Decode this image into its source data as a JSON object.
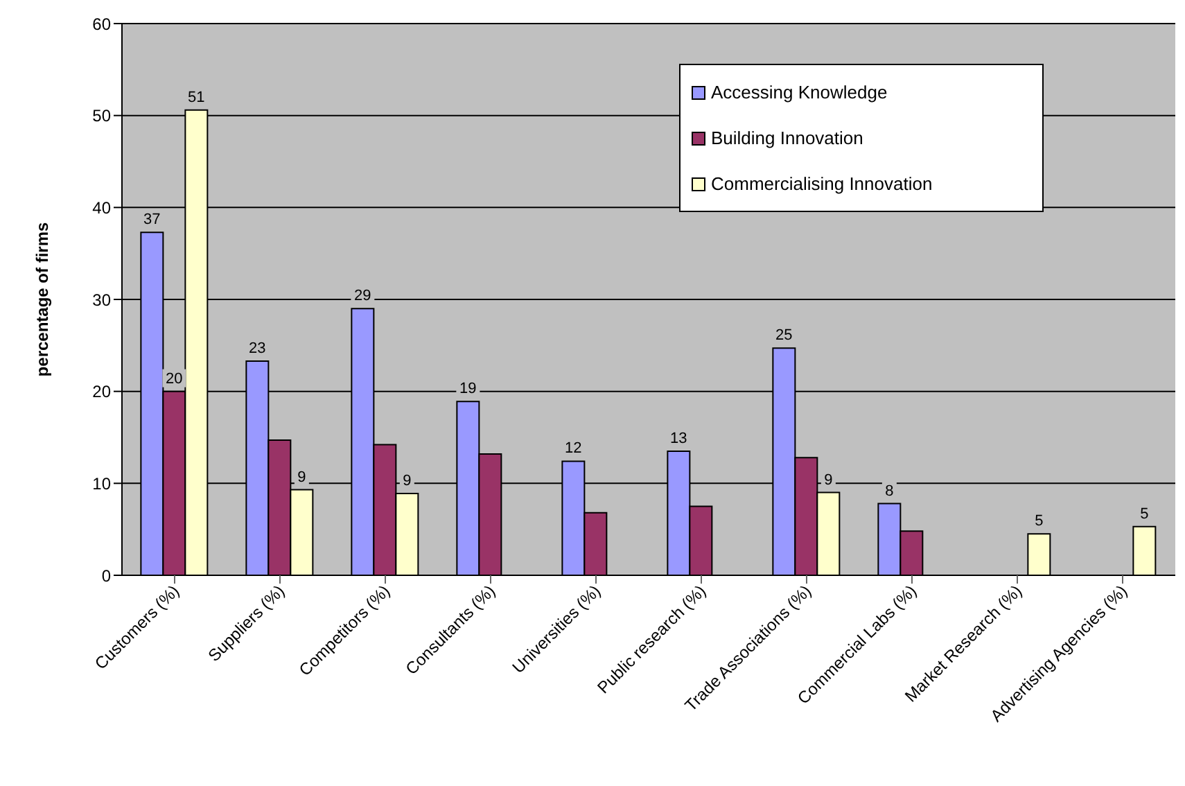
{
  "chart_data": {
    "type": "bar",
    "ylabel": "percentage of firms",
    "categories": [
      "Customers (%)",
      "Suppliers (%)",
      "Competitors (%)",
      "Consultants (%)",
      "Universities (%)",
      "Public research (%)",
      "Trade Associations (%)",
      "Commercial Labs (%)",
      "Market Research (%)",
      "Advertising Agencies (%)"
    ],
    "series": [
      {
        "name": "Accessing Knowledge",
        "color": "#9999ff",
        "values": [
          37.3,
          23.3,
          29,
          18.9,
          12.4,
          13.5,
          24.7,
          7.8,
          null,
          null
        ],
        "value_labels": [
          "37",
          "23",
          "29",
          "19",
          "12",
          "13",
          "25",
          "8",
          null,
          null
        ]
      },
      {
        "name": "Building Innovation",
        "color": "#993366",
        "values": [
          20,
          14.7,
          14.2,
          13.2,
          6.8,
          7.5,
          12.8,
          4.8,
          null,
          null
        ],
        "value_labels": [
          "20",
          null,
          null,
          null,
          null,
          null,
          null,
          null,
          null,
          null
        ]
      },
      {
        "name": "Commercialising Innovation",
        "color": "#ffffcc",
        "values": [
          50.6,
          9.3,
          8.9,
          null,
          null,
          null,
          9,
          null,
          4.5,
          5.3
        ],
        "value_labels": [
          "51",
          "9",
          "9",
          null,
          null,
          null,
          "9",
          null,
          "5",
          "5"
        ]
      }
    ],
    "ylim": [
      0,
      60
    ],
    "yticks": [
      0,
      10,
      20,
      30,
      40,
      50,
      60
    ],
    "grid": "y",
    "legend": "top right"
  }
}
